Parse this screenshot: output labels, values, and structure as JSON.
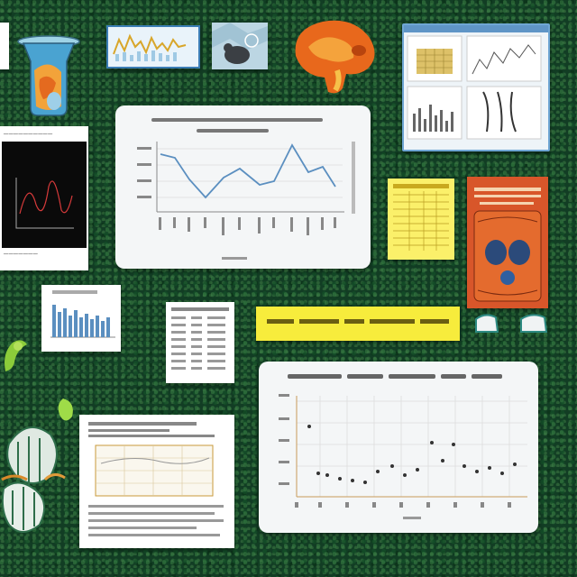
{
  "colors": {
    "background": "#123d24",
    "line_series": "#5b8fc0",
    "scatter_points": "#333333",
    "sticky_yellow": "#f7ec3c",
    "book_orange": "#d8562a",
    "grid": "#dddddd"
  },
  "icons": [
    "beaker-icon",
    "plant-icon",
    "mouse-icon",
    "brain-icon",
    "leaf-icon"
  ]
}
